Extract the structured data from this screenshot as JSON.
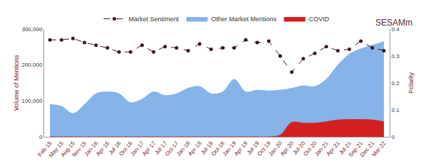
{
  "chart_data": {
    "type": "area",
    "annotations": [
      "SESAMm"
    ],
    "y_label": "Volume of Mentions",
    "y2_label": "Polarity",
    "categories": [
      "Feb-15",
      "May-15",
      "Aug-15",
      "Nov-15",
      "Jan-16",
      "Apr-16",
      "Jul-16",
      "Oct-16",
      "Jan-17",
      "Apr-17",
      "Jul-17",
      "Oct-17",
      "Jan-18",
      "Apr-18",
      "Jul-18",
      "Oct-18",
      "Jan-19",
      "Apr-19",
      "Jul-19",
      "Oct-19",
      "Jan-20",
      "Apr-20",
      "Jul-20",
      "Oct-20",
      "Jan-21",
      "Apr-21",
      "Jul-21",
      "Sep-21",
      "Dec-21",
      "Mar-22"
    ],
    "series": [
      {
        "name": "Market Sentiment",
        "type": "line",
        "axis": "y2",
        "color": "#3b1626",
        "marker": "circle",
        "line_style": "dash",
        "values": [
          0.36,
          0.36,
          0.365,
          0.35,
          0.34,
          0.33,
          0.315,
          0.315,
          0.34,
          0.315,
          0.335,
          0.33,
          0.32,
          0.345,
          0.325,
          0.33,
          0.33,
          0.36,
          0.35,
          0.355,
          0.3,
          0.24,
          0.29,
          0.31,
          0.335,
          0.32,
          0.325,
          0.355,
          0.33,
          0.32
        ]
      },
      {
        "name": "Other Market Mentions",
        "type": "area",
        "color": "#86b4e8",
        "values": [
          90000,
          85000,
          65000,
          90000,
          120000,
          125000,
          120000,
          95000,
          105000,
          125000,
          115000,
          120000,
          135000,
          140000,
          120000,
          125000,
          160000,
          125000,
          130000,
          128000,
          130000,
          135000,
          142000,
          140000,
          160000,
          200000,
          230000,
          245000,
          255000,
          265000
        ]
      },
      {
        "name": "COVID",
        "type": "area",
        "color": "#d42020",
        "values": [
          0,
          0,
          0,
          0,
          0,
          0,
          0,
          0,
          0,
          0,
          0,
          0,
          0,
          0,
          0,
          0,
          0,
          0,
          0,
          0,
          5000,
          40000,
          38000,
          38000,
          42000,
          47000,
          48000,
          48000,
          47000,
          42000
        ]
      }
    ],
    "ylim": [
      0,
      300000
    ],
    "yticks": [
      0,
      {
        "value": 100000,
        "label": "100,000"
      },
      {
        "value": 200000,
        "label": "200,000"
      },
      {
        "value": 300000,
        "label": "300,000"
      }
    ],
    "y2lim": [
      0,
      0.4
    ],
    "y2ticks": [
      0,
      0.1,
      0.2,
      0.3,
      0.4
    ],
    "grid": false,
    "legend": "top"
  }
}
